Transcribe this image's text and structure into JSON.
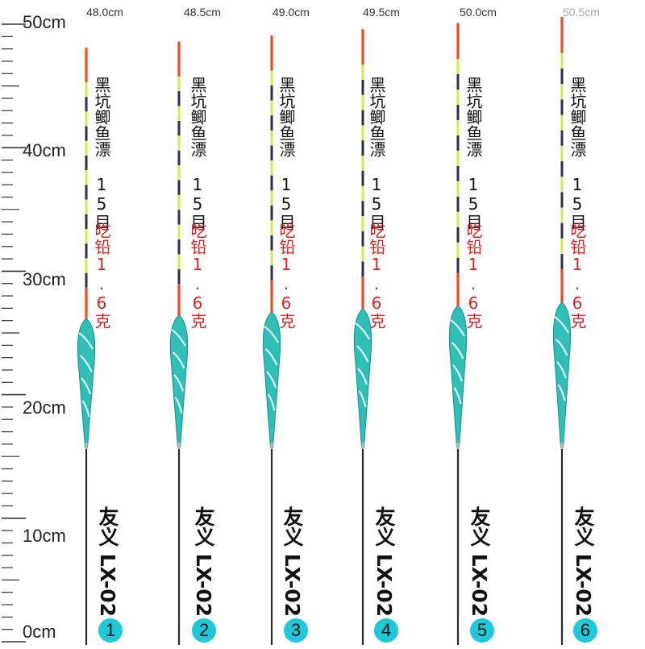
{
  "ruler": {
    "labels": [
      "50cm",
      "40cm",
      "30cm",
      "20cm",
      "10cm",
      "0cm"
    ]
  },
  "floats": [
    {
      "length": "48.0cm",
      "name": "黑坑鲫鱼漂",
      "eye": "15目",
      "lead": "吃铅1.6克",
      "model": "友义 LX-02",
      "number": "1"
    },
    {
      "length": "48.5cm",
      "name": "黑坑鲫鱼漂",
      "eye": "15目",
      "lead": "吃铅1.6克",
      "model": "友义 LX-02",
      "number": "2"
    },
    {
      "length": "49.0cm",
      "name": "黑坑鲫鱼漂",
      "eye": "15目",
      "lead": "吃铅1.6克",
      "model": "友义 LX-02",
      "number": "3"
    },
    {
      "length": "49.5cm",
      "name": "黑坑鲫鱼漂",
      "eye": "15目",
      "lead": "吃铅1.6克",
      "model": "友义 LX-02",
      "number": "4"
    },
    {
      "length": "50.0cm",
      "name": "黑坑鲫鱼漂",
      "eye": "15目",
      "lead": "吃铅1.6克",
      "model": "友义 LX-02",
      "number": "5"
    },
    {
      "length": "50.5cm",
      "name": "黑坑鲫鱼漂",
      "eye": "15目",
      "lead": "吃铅1.6克",
      "model": "友义 LX-02",
      "number": "6"
    }
  ],
  "colors": {
    "tip_red": "#ee4a1e",
    "tip_yellow": "#c9f04a",
    "tip_dark": "#2a2f55",
    "body_teal": "#2fbfb6",
    "body_dark": "#1c8f8c",
    "stem": "#2a2a2a",
    "badge": "#1ec8d8",
    "lead_text": "#e02020"
  }
}
